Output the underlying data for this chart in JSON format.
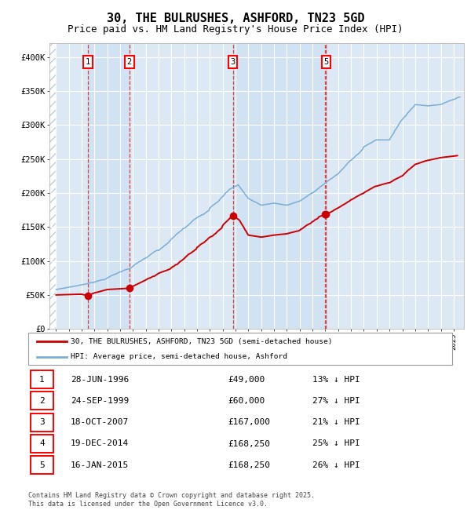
{
  "title": "30, THE BULRUSHES, ASHFORD, TN23 5GD",
  "subtitle": "Price paid vs. HM Land Registry's House Price Index (HPI)",
  "title_fontsize": 11,
  "subtitle_fontsize": 9,
  "plot_bg_color": "#dce9f5",
  "hatch_color": "#b8cfe0",
  "grid_color": "#ffffff",
  "sale_dates": [
    1996.49,
    1999.73,
    2007.8,
    2014.97,
    2015.05
  ],
  "sale_prices": [
    49000,
    60000,
    167000,
    168250,
    168250
  ],
  "sale_labels": [
    "1",
    "2",
    "3",
    "4",
    "5"
  ],
  "sale_label_show": [
    true,
    true,
    true,
    false,
    true
  ],
  "red_line_color": "#cc0000",
  "blue_line_color": "#7aadd4",
  "dashed_line_color": "#dd2222",
  "ylim": [
    0,
    420000
  ],
  "ytick_values": [
    0,
    50000,
    100000,
    150000,
    200000,
    250000,
    300000,
    350000,
    400000
  ],
  "ytick_labels": [
    "£0",
    "£50K",
    "£100K",
    "£150K",
    "£200K",
    "£250K",
    "£300K",
    "£350K",
    "£400K"
  ],
  "xlim_start": 1993.5,
  "xlim_end": 2025.8,
  "xtick_start": 1994,
  "xtick_end": 2025,
  "legend_line1": "30, THE BULRUSHES, ASHFORD, TN23 5GD (semi-detached house)",
  "legend_line2": "HPI: Average price, semi-detached house, Ashford",
  "table_data": [
    [
      "1",
      "28-JUN-1996",
      "£49,000",
      "13% ↓ HPI"
    ],
    [
      "2",
      "24-SEP-1999",
      "£60,000",
      "27% ↓ HPI"
    ],
    [
      "3",
      "18-OCT-2007",
      "£167,000",
      "21% ↓ HPI"
    ],
    [
      "4",
      "19-DEC-2014",
      "£168,250",
      "25% ↓ HPI"
    ],
    [
      "5",
      "16-JAN-2015",
      "£168,250",
      "26% ↓ HPI"
    ]
  ],
  "footer": "Contains HM Land Registry data © Crown copyright and database right 2025.\nThis data is licensed under the Open Government Licence v3.0."
}
